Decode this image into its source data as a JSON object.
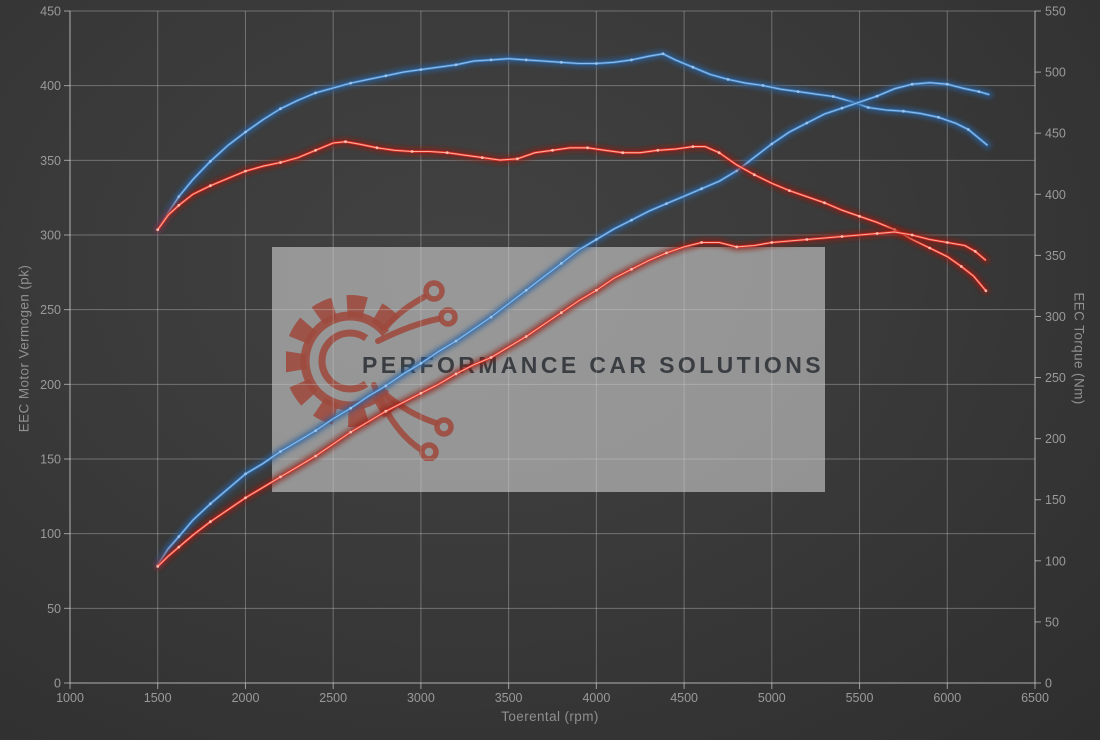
{
  "watermark": {
    "text": "PERFORMANCE CAR SOLUTIONS",
    "logo": "gear-circuit-logo"
  },
  "colors": {
    "background": "#3a3a3a",
    "grid": "#cccccc",
    "tick_text": "#9a9a9a",
    "axis_title_text": "#8f8f8f",
    "blue": "#3d7fc0",
    "blue_glow": "#2a5f9e",
    "blue_core": "#9ec6ee",
    "red": "#dd2b20",
    "red_glow": "#8f1710",
    "red_core": "#ffc2b2",
    "watermark_box": "rgba(255,255,255,0.46)",
    "watermark_logo": "#9e4a3e",
    "watermark_text": "#3a3e42"
  },
  "axes": {
    "x": {
      "label": "Toerental (rpm)",
      "min": 1000,
      "max": 6500,
      "step": 500,
      "tick_labels": [
        "1000",
        "1500",
        "2000",
        "2500",
        "3000",
        "3500",
        "4000",
        "4500",
        "5000",
        "5500",
        "6000",
        "6500"
      ]
    },
    "y_left": {
      "label": "EEC Motor Vermogen (pk)",
      "min": 0,
      "max": 450,
      "step": 50,
      "tick_labels": [
        "0",
        "50",
        "100",
        "150",
        "200",
        "250",
        "300",
        "350",
        "400",
        "450"
      ]
    },
    "y_right": {
      "label": "EEC Torque (Nm)",
      "min": 0,
      "max": 550,
      "step": 50,
      "tick_labels": [
        "0",
        "50",
        "100",
        "150",
        "200",
        "250",
        "300",
        "350",
        "400",
        "450",
        "500",
        "550"
      ]
    }
  },
  "chart_data": {
    "type": "line",
    "title": "",
    "xlabel": "Toerental (rpm)",
    "ylabel_left": "EEC Motor Vermogen (pk)",
    "ylabel_right": "EEC Torque (Nm)",
    "x_range": [
      1000,
      6500
    ],
    "y_left_range": [
      0,
      450
    ],
    "y_right_range": [
      0,
      550
    ],
    "grid": true,
    "legend": false,
    "series": [
      {
        "name": "torque (blue)",
        "axis": "right",
        "unit": "Nm",
        "color": "#3d7fc0",
        "glow": "#2a5f9e",
        "core": "#9ec6ee",
        "points": [
          [
            1500,
            371
          ],
          [
            1560,
            385
          ],
          [
            1620,
            398
          ],
          [
            1700,
            412
          ],
          [
            1800,
            427
          ],
          [
            1900,
            440
          ],
          [
            2000,
            451
          ],
          [
            2100,
            461
          ],
          [
            2200,
            470
          ],
          [
            2300,
            477
          ],
          [
            2400,
            483
          ],
          [
            2500,
            487
          ],
          [
            2600,
            491
          ],
          [
            2700,
            494
          ],
          [
            2800,
            497
          ],
          [
            2900,
            500
          ],
          [
            3000,
            502
          ],
          [
            3100,
            504
          ],
          [
            3200,
            506
          ],
          [
            3300,
            509
          ],
          [
            3400,
            510
          ],
          [
            3500,
            511
          ],
          [
            3600,
            510
          ],
          [
            3700,
            509
          ],
          [
            3800,
            508
          ],
          [
            3900,
            507
          ],
          [
            4000,
            507
          ],
          [
            4100,
            508
          ],
          [
            4200,
            510
          ],
          [
            4300,
            513
          ],
          [
            4380,
            515
          ],
          [
            4450,
            510
          ],
          [
            4550,
            504
          ],
          [
            4650,
            498
          ],
          [
            4750,
            494
          ],
          [
            4850,
            491
          ],
          [
            4950,
            489
          ],
          [
            5050,
            486
          ],
          [
            5150,
            484
          ],
          [
            5250,
            482
          ],
          [
            5350,
            480
          ],
          [
            5450,
            476
          ],
          [
            5550,
            471
          ],
          [
            5650,
            469
          ],
          [
            5750,
            468
          ],
          [
            5850,
            466
          ],
          [
            5950,
            463
          ],
          [
            6050,
            458
          ],
          [
            6120,
            453
          ],
          [
            6230,
            440
          ]
        ]
      },
      {
        "name": "power (blue)",
        "axis": "left",
        "unit": "pk",
        "color": "#3d7fc0",
        "glow": "#2a5f9e",
        "core": "#9ec6ee",
        "points": [
          [
            1500,
            79
          ],
          [
            1560,
            90
          ],
          [
            1620,
            98
          ],
          [
            1700,
            109
          ],
          [
            1800,
            120
          ],
          [
            1900,
            130
          ],
          [
            2000,
            140
          ],
          [
            2100,
            147
          ],
          [
            2200,
            155
          ],
          [
            2300,
            162
          ],
          [
            2400,
            169
          ],
          [
            2500,
            177
          ],
          [
            2600,
            184
          ],
          [
            2700,
            192
          ],
          [
            2800,
            199
          ],
          [
            2900,
            207
          ],
          [
            3000,
            214
          ],
          [
            3100,
            222
          ],
          [
            3200,
            229
          ],
          [
            3300,
            237
          ],
          [
            3400,
            245
          ],
          [
            3500,
            254
          ],
          [
            3600,
            263
          ],
          [
            3700,
            272
          ],
          [
            3800,
            281
          ],
          [
            3900,
            290
          ],
          [
            4000,
            297
          ],
          [
            4100,
            304
          ],
          [
            4200,
            310
          ],
          [
            4300,
            316
          ],
          [
            4400,
            321
          ],
          [
            4500,
            326
          ],
          [
            4600,
            331
          ],
          [
            4700,
            336
          ],
          [
            4800,
            343
          ],
          [
            4900,
            352
          ],
          [
            5000,
            361
          ],
          [
            5100,
            369
          ],
          [
            5200,
            375
          ],
          [
            5300,
            381
          ],
          [
            5400,
            385
          ],
          [
            5500,
            389
          ],
          [
            5600,
            393
          ],
          [
            5700,
            398
          ],
          [
            5800,
            401
          ],
          [
            5900,
            402
          ],
          [
            6000,
            401
          ],
          [
            6100,
            398
          ],
          [
            6180,
            396
          ],
          [
            6240,
            394
          ]
        ]
      },
      {
        "name": "torque (red)",
        "axis": "right",
        "unit": "Nm",
        "color": "#dd2b20",
        "glow": "#8f1710",
        "core": "#ffc2b2",
        "points": [
          [
            1500,
            371
          ],
          [
            1560,
            383
          ],
          [
            1620,
            391
          ],
          [
            1700,
            400
          ],
          [
            1800,
            407
          ],
          [
            1900,
            413
          ],
          [
            2000,
            419
          ],
          [
            2100,
            423
          ],
          [
            2200,
            426
          ],
          [
            2300,
            430
          ],
          [
            2400,
            436
          ],
          [
            2500,
            442
          ],
          [
            2570,
            443
          ],
          [
            2650,
            441
          ],
          [
            2750,
            438
          ],
          [
            2850,
            436
          ],
          [
            2950,
            435
          ],
          [
            3050,
            435
          ],
          [
            3150,
            434
          ],
          [
            3250,
            432
          ],
          [
            3350,
            430
          ],
          [
            3450,
            428
          ],
          [
            3550,
            429
          ],
          [
            3650,
            434
          ],
          [
            3750,
            436
          ],
          [
            3850,
            438
          ],
          [
            3950,
            438
          ],
          [
            4050,
            436
          ],
          [
            4150,
            434
          ],
          [
            4250,
            434
          ],
          [
            4350,
            436
          ],
          [
            4450,
            437
          ],
          [
            4550,
            439
          ],
          [
            4620,
            439
          ],
          [
            4700,
            434
          ],
          [
            4800,
            424
          ],
          [
            4900,
            416
          ],
          [
            5000,
            409
          ],
          [
            5100,
            403
          ],
          [
            5200,
            398
          ],
          [
            5300,
            393
          ],
          [
            5400,
            387
          ],
          [
            5500,
            382
          ],
          [
            5600,
            377
          ],
          [
            5700,
            371
          ],
          [
            5800,
            363
          ],
          [
            5900,
            356
          ],
          [
            6000,
            349
          ],
          [
            6080,
            341
          ],
          [
            6150,
            333
          ],
          [
            6220,
            321
          ]
        ]
      },
      {
        "name": "power (red)",
        "axis": "left",
        "unit": "pk",
        "color": "#dd2b20",
        "glow": "#8f1710",
        "core": "#ffc2b2",
        "points": [
          [
            1500,
            78
          ],
          [
            1560,
            85
          ],
          [
            1620,
            91
          ],
          [
            1700,
            99
          ],
          [
            1800,
            108
          ],
          [
            1900,
            116
          ],
          [
            2000,
            124
          ],
          [
            2100,
            131
          ],
          [
            2200,
            138
          ],
          [
            2300,
            145
          ],
          [
            2400,
            152
          ],
          [
            2500,
            160
          ],
          [
            2600,
            168
          ],
          [
            2700,
            175
          ],
          [
            2800,
            182
          ],
          [
            2900,
            188
          ],
          [
            3000,
            194
          ],
          [
            3100,
            200
          ],
          [
            3200,
            207
          ],
          [
            3300,
            213
          ],
          [
            3400,
            218
          ],
          [
            3500,
            225
          ],
          [
            3600,
            232
          ],
          [
            3700,
            240
          ],
          [
            3800,
            248
          ],
          [
            3900,
            256
          ],
          [
            4000,
            263
          ],
          [
            4100,
            271
          ],
          [
            4200,
            277
          ],
          [
            4300,
            283
          ],
          [
            4400,
            288
          ],
          [
            4500,
            292
          ],
          [
            4600,
            295
          ],
          [
            4700,
            295
          ],
          [
            4800,
            292
          ],
          [
            4900,
            293
          ],
          [
            5000,
            295
          ],
          [
            5100,
            296
          ],
          [
            5200,
            297
          ],
          [
            5300,
            298
          ],
          [
            5400,
            299
          ],
          [
            5500,
            300
          ],
          [
            5600,
            301
          ],
          [
            5700,
            302
          ],
          [
            5800,
            300
          ],
          [
            5900,
            297
          ],
          [
            6000,
            295
          ],
          [
            6100,
            293
          ],
          [
            6160,
            289
          ],
          [
            6220,
            283
          ]
        ]
      }
    ]
  }
}
